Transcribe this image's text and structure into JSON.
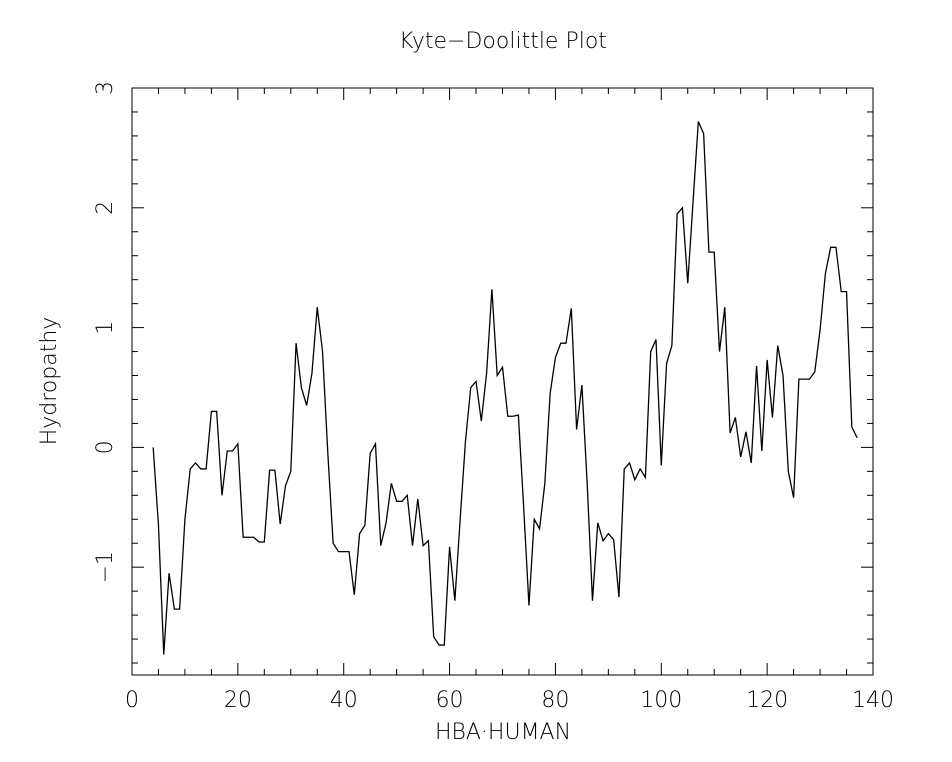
{
  "chart_data": {
    "type": "line",
    "title": "Kyte−Doolittle Plot",
    "x_label": "HBA·HUMAN",
    "y_label": "Hydropathy",
    "x": [
      4,
      5,
      6,
      7,
      8,
      9,
      10,
      11,
      12,
      13,
      14,
      15,
      16,
      17,
      18,
      19,
      20,
      21,
      22,
      23,
      24,
      25,
      26,
      27,
      28,
      29,
      30,
      31,
      32,
      33,
      34,
      35,
      36,
      37,
      38,
      39,
      40,
      41,
      42,
      43,
      44,
      45,
      46,
      47,
      48,
      49,
      50,
      51,
      52,
      53,
      54,
      55,
      56,
      57,
      58,
      59,
      60,
      61,
      62,
      63,
      64,
      65,
      66,
      67,
      68,
      69,
      70,
      71,
      72,
      73,
      74,
      75,
      76,
      77,
      78,
      79,
      80,
      81,
      82,
      83,
      84,
      85,
      86,
      87,
      88,
      89,
      90,
      91,
      92,
      93,
      94,
      95,
      96,
      97,
      98,
      99,
      100,
      101,
      102,
      103,
      104,
      105,
      106,
      107,
      108,
      109,
      110,
      111,
      112,
      113,
      114,
      115,
      116,
      117,
      118,
      119,
      120,
      121,
      122,
      123,
      124,
      125,
      126,
      127,
      128,
      129,
      130,
      131,
      132,
      133,
      134,
      135,
      136,
      137
    ],
    "series": [
      {
        "color": "#000000",
        "values": [
          0,
          -0.65,
          -1.73,
          -1.05,
          -1.35,
          -1.35,
          -0.6,
          -0.18,
          -0.13,
          -0.18,
          -0.18,
          0.3,
          0.3,
          -0.4,
          -0.03,
          -0.03,
          0.03,
          -0.75,
          -0.75,
          -0.75,
          -0.79,
          -0.79,
          -0.19,
          -0.19,
          -0.64,
          -0.32,
          -0.2,
          0.87,
          0.5,
          0.35,
          0.62,
          1.17,
          0.8,
          -0.05,
          -0.8,
          -0.87,
          -0.87,
          -0.87,
          -1.23,
          -0.72,
          -0.65,
          -0.05,
          0.03,
          -0.82,
          -0.63,
          -0.3,
          -0.45,
          -0.45,
          -0.4,
          -0.82,
          -0.43,
          -0.82,
          -0.78,
          -1.58,
          -1.65,
          -1.65,
          -0.83,
          -1.28,
          -0.6,
          0.05,
          0.5,
          0.55,
          0.22,
          0.62,
          1.32,
          0.6,
          0.67,
          0.26,
          0.26,
          0.27,
          -0.5,
          -1.32,
          -0.6,
          -0.68,
          -0.3,
          0.45,
          0.75,
          0.87,
          0.87,
          1.16,
          0.15,
          0.52,
          -0.3,
          -1.28,
          -0.63,
          -0.78,
          -0.72,
          -0.77,
          -1.25,
          -0.18,
          -0.13,
          -0.27,
          -0.18,
          -0.25,
          0.8,
          0.9,
          -0.15,
          0.7,
          0.85,
          1.95,
          2.0,
          1.37,
          2.05,
          2.72,
          2.62,
          1.63,
          1.63,
          0.8,
          1.17,
          0.12,
          0.25,
          -0.08,
          0.13,
          -0.13,
          0.68,
          -0.03,
          0.73,
          0.25,
          0.85,
          0.6,
          -0.2,
          -0.42,
          0.57,
          0.57,
          0.57,
          0.63,
          0.98,
          1.45,
          1.67,
          1.67,
          1.3,
          1.3,
          0.17,
          0.08
        ]
      }
    ],
    "xlim": [
      0,
      140
    ],
    "xticks": [
      0,
      20,
      40,
      60,
      80,
      100,
      120,
      140
    ],
    "ylim": [
      -1.9,
      3
    ],
    "yticks": [
      {
        "value": -1,
        "label": "−1"
      },
      0,
      1,
      2,
      3
    ]
  }
}
